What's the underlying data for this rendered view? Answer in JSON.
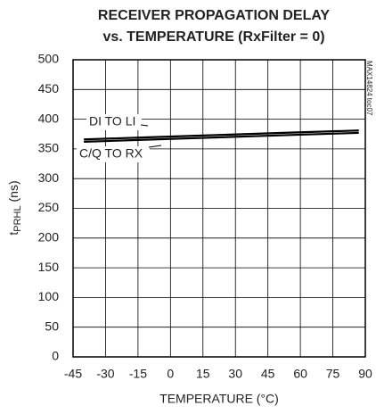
{
  "chart_data": {
    "type": "line",
    "title": [
      "RECEIVER PROPAGATION DELAY",
      "vs. TEMPERATURE (RxFilter = 0)"
    ],
    "xlabel": "TEMPERATURE (°C)",
    "ylabel": [
      "t",
      "PRHL",
      " (ns)"
    ],
    "note": "MAX14824 toc07",
    "x": [
      -40,
      -15,
      10,
      35,
      60,
      87
    ],
    "series": [
      {
        "name": "DI TO LI",
        "color": "#000000",
        "values": [
          366,
          369,
          372,
          375,
          378,
          381
        ]
      },
      {
        "name": "C/Q TO RX",
        "color": "#000000",
        "values": [
          362,
          365,
          368,
          371,
          374,
          377
        ]
      }
    ],
    "xlim": [
      -45,
      90
    ],
    "xticks": [
      -45,
      -30,
      -15,
      0,
      15,
      30,
      45,
      60,
      75,
      90
    ],
    "ylim": [
      0,
      500
    ],
    "yticks": [
      0,
      50,
      100,
      150,
      200,
      250,
      300,
      350,
      400,
      450,
      500
    ],
    "grid": true
  }
}
